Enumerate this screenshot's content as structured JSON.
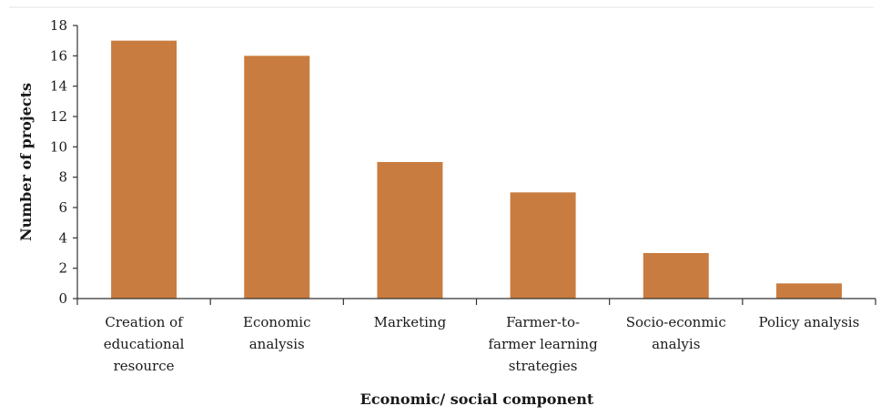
{
  "chart_data": {
    "type": "bar",
    "categories": [
      [
        "Creation of",
        "educational",
        "resource"
      ],
      [
        "Economic",
        "analysis"
      ],
      [
        "Marketing"
      ],
      [
        "Farmer-to-",
        "farmer learning",
        "strategies"
      ],
      [
        "Socio-econmic",
        "analyis"
      ],
      [
        "Policy analysis"
      ]
    ],
    "values": [
      17,
      16,
      9,
      7,
      3,
      1
    ],
    "xlabel": "Economic/ social component",
    "ylabel": "Number of projects",
    "ylim": [
      0,
      18
    ],
    "yticks": [
      "0",
      "2",
      "4",
      "6",
      "8",
      "10",
      "12",
      "14",
      "16",
      "18"
    ],
    "bar_color": "#c97c3f",
    "grid": false,
    "legend": "none"
  }
}
